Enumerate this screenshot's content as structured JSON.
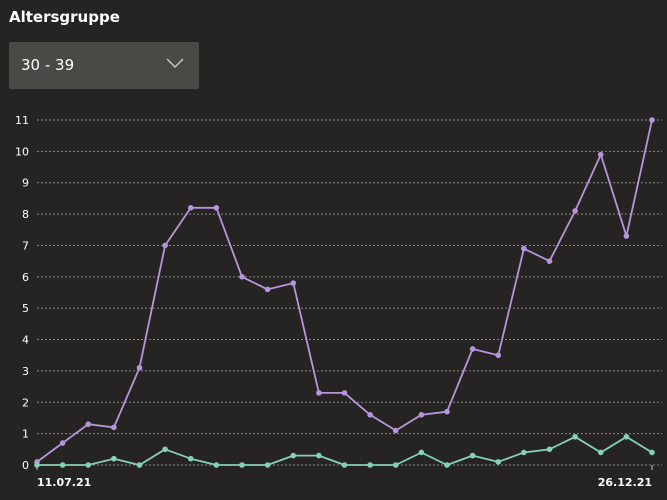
{
  "header": {
    "title": "Altersgruppe"
  },
  "filter": {
    "selected": "30 - 39",
    "icon": "chevron-down-icon"
  },
  "colors": {
    "background": "#252423",
    "grid": "#8a8985",
    "series_purple": "#b795db",
    "series_green": "#86d1b3",
    "dropdown_bg": "#4a4945"
  },
  "chart_data": {
    "type": "line",
    "ylim": [
      0,
      11
    ],
    "yticks": [
      0,
      1,
      2,
      3,
      4,
      5,
      6,
      7,
      8,
      9,
      10,
      11
    ],
    "x_tick_labels": [
      "11.07.21",
      "26.12.21"
    ],
    "grid": true,
    "series": [
      {
        "color": "#b795db",
        "values": [
          0.1,
          0.7,
          1.3,
          1.2,
          3.1,
          7.0,
          8.2,
          8.2,
          6.0,
          5.6,
          5.8,
          2.3,
          2.3,
          1.6,
          1.1,
          1.6,
          1.7,
          3.7,
          3.5,
          6.9,
          6.5,
          8.1,
          9.9,
          7.3,
          11.0
        ]
      },
      {
        "color": "#86d1b3",
        "values": [
          0.0,
          0.0,
          0.0,
          0.2,
          0.0,
          0.5,
          0.2,
          0.0,
          0.0,
          0.0,
          0.3,
          0.3,
          0.0,
          0.0,
          0.0,
          0.4,
          0.0,
          0.3,
          0.1,
          0.4,
          0.5,
          0.9,
          0.4,
          0.9,
          0.4
        ]
      }
    ]
  }
}
